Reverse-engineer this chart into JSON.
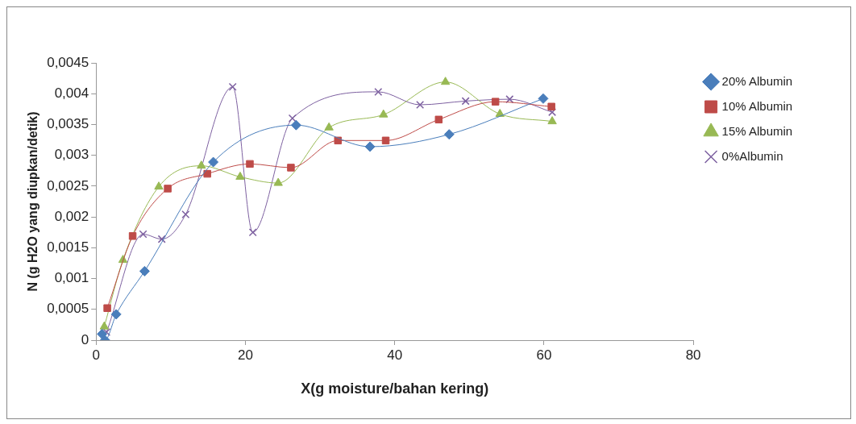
{
  "chart_data": {
    "type": "line",
    "xlabel": "X(g moisture/bahan kering)",
    "ylabel": "N (g H2O yang diupkan/detik)",
    "xlim": [
      0,
      80
    ],
    "xticks": [
      0,
      20,
      40,
      60,
      80
    ],
    "ylim": [
      0,
      0.0045
    ],
    "yticks": [
      0,
      {
        "value": 0.0005,
        "label": "0,0005"
      },
      {
        "value": 0.001,
        "label": "0,001"
      },
      {
        "value": 0.0015,
        "label": "0,0015"
      },
      {
        "value": 0.002,
        "label": "0,002"
      },
      {
        "value": 0.0025,
        "label": "0,0025"
      },
      {
        "value": 0.003,
        "label": "0,003"
      },
      {
        "value": 0.0035,
        "label": "0,0035"
      },
      {
        "value": 0.004,
        "label": "0,004"
      },
      {
        "value": 0.0045,
        "label": "0,0045"
      }
    ],
    "grid": false,
    "legend": "right",
    "series": [
      {
        "name": "20% Albumin",
        "color": "#4a7ebb",
        "marker": "diamond",
        "x": [
          0.8,
          1.2,
          2.7,
          6.5,
          15.7,
          26.8,
          36.7,
          47.3,
          59.9
        ],
        "values": [
          0.0001,
          0,
          0.00042,
          0.00112,
          0.00289,
          0.00349,
          0.00314,
          0.00334,
          0.00392
        ]
      },
      {
        "name": "10% Albumin",
        "color": "#be4b48",
        "marker": "square",
        "x": [
          1.5,
          4.9,
          9.6,
          14.9,
          20.6,
          26.1,
          32.4,
          38.8,
          45.9,
          53.5,
          61
        ],
        "values": [
          0.00052,
          0.00169,
          0.00246,
          0.0027,
          0.00286,
          0.0028,
          0.00324,
          0.00324,
          0.00358,
          0.00387,
          0.00379
        ]
      },
      {
        "name": "15% Albumin",
        "color": "#98b954",
        "marker": "triangle",
        "x": [
          1.1,
          3.6,
          8.4,
          14.1,
          19.3,
          24.4,
          31.2,
          38.5,
          46.8,
          54.1,
          61.1
        ],
        "values": [
          0.00022,
          0.0013,
          0.00249,
          0.00283,
          0.00265,
          0.00255,
          0.00345,
          0.00366,
          0.00419,
          0.00367,
          0.00355
        ]
      },
      {
        "name": "0%Albumin",
        "color": "#7d60a0",
        "marker": "cross",
        "x": [
          1.4,
          6.3,
          8.8,
          12,
          18.3,
          21,
          26.3,
          37.8,
          43.4,
          49.5,
          55.4,
          61.1
        ],
        "values": [
          0.00013,
          0.00172,
          0.00164,
          0.00204,
          0.00411,
          0.00175,
          0.0036,
          0.00403,
          0.00382,
          0.00388,
          0.00391,
          0.0037
        ]
      }
    ]
  }
}
